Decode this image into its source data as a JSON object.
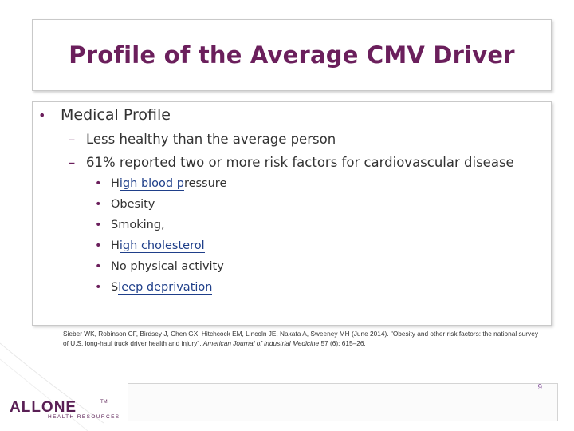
{
  "slide": {
    "title": "Profile of the Average CMV Driver",
    "bullet": "Medical Profile",
    "sub_points": [
      "Less healthy than the average person",
      "61% reported two or more risk factors for cardiovascular disease"
    ],
    "risk_factors": [
      {
        "pre": "H",
        "link": "igh blood p",
        "post": "ressure"
      },
      {
        "pre": "Obesity",
        "link": "",
        "post": ""
      },
      {
        "pre": "Smoking,",
        "link": "",
        "post": ""
      },
      {
        "pre": "H",
        "link": "igh cholesterol",
        "post": ""
      },
      {
        "pre": "No physical activity",
        "link": "",
        "post": ""
      },
      {
        "pre": "S",
        "link": "leep deprivation",
        "post": ""
      }
    ],
    "citation_main": "Sieber WK, Robinson CF, Birdsey J, Chen GX, Hitchcock EM, Lincoln JE, Nakata A, Sweeney MH (June 2014). \"Obesity and other risk factors: the national survey of U.S. long-haul truck driver health and injury\". ",
    "citation_journal": "American Journal of Industrial Medicine",
    "citation_tail": " 57 (6): 615–26.",
    "page_number": "9"
  },
  "logo": {
    "word": "ALLONE",
    "tm": "TM",
    "sub": "HEALTH RESOURCES"
  },
  "colors": {
    "title": "#6b1f5c",
    "bullet": "#6b1f5c",
    "link": "#1f3f8a",
    "text": "#333333"
  }
}
